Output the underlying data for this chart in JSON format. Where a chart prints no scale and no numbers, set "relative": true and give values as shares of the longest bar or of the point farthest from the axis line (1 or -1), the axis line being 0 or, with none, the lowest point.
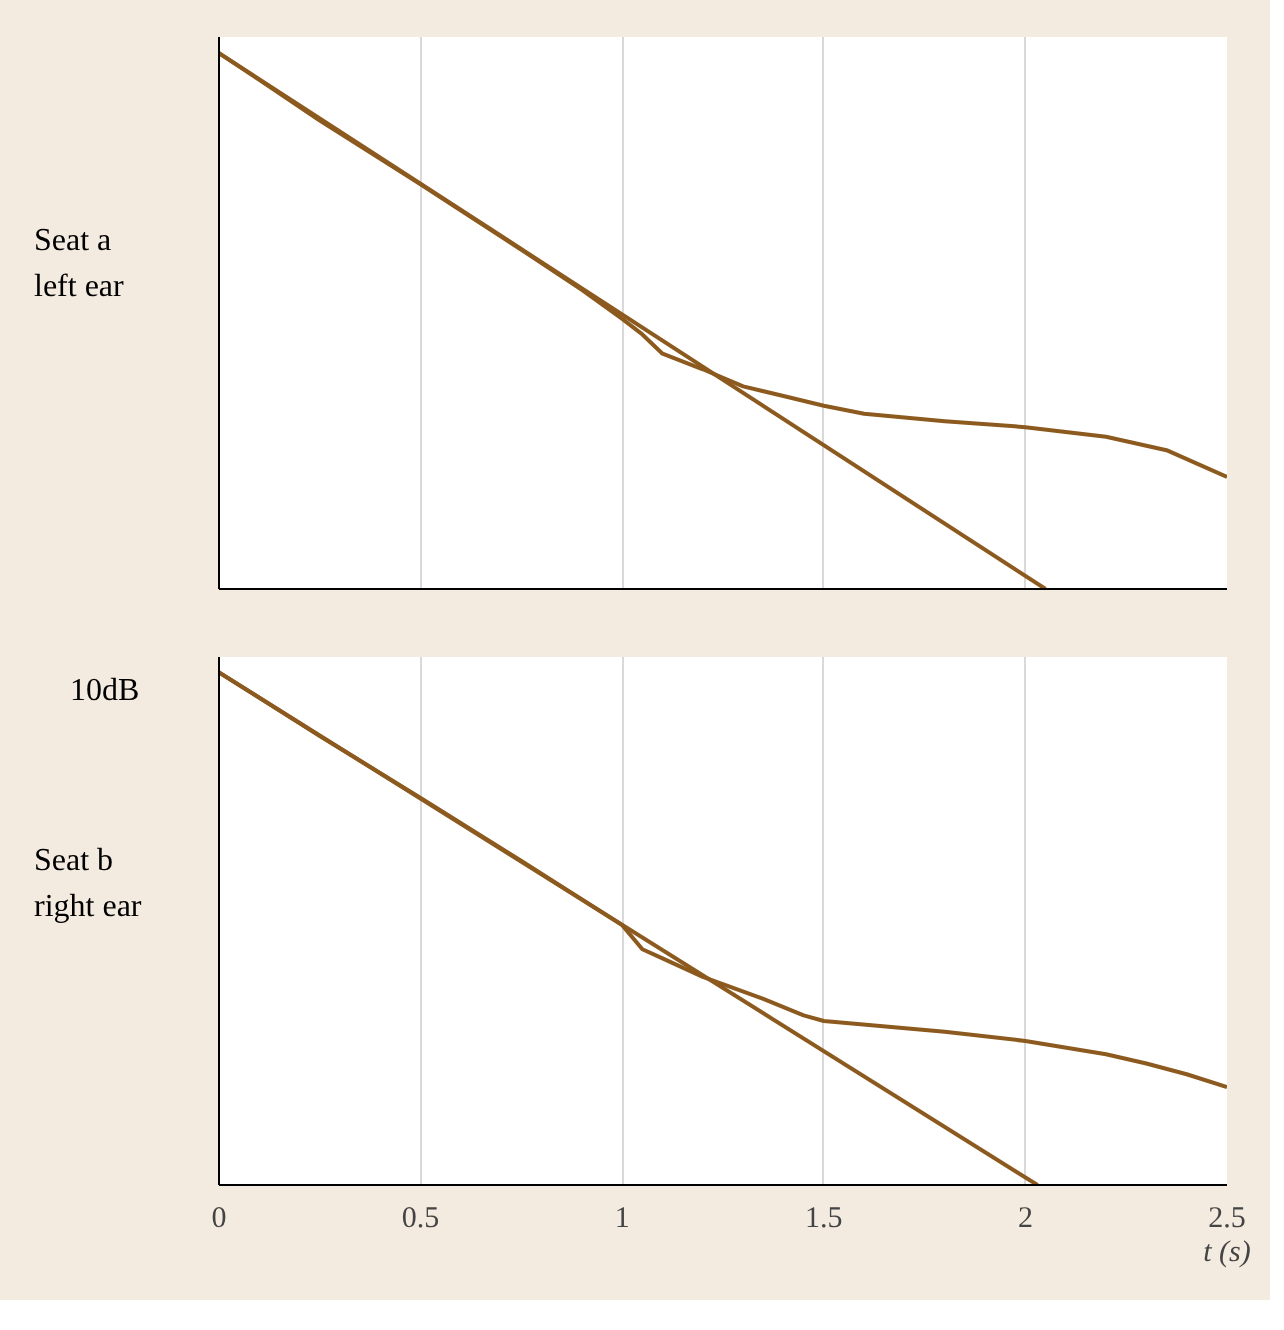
{
  "chart_data": [
    {
      "type": "line",
      "relative": true,
      "ylabel": "Seat a\nleft ear",
      "xlim": [
        0,
        2.5
      ],
      "xticks": [
        0,
        0.5,
        1,
        1.5,
        2,
        2.5
      ],
      "grid": "x",
      "tick_labels": false,
      "series": [
        {
          "color": "#8c5a1e",
          "x": [
            0,
            0.1,
            0.25,
            0.5,
            0.75,
            0.9,
            1.0,
            1.05,
            1.1,
            1.2,
            1.3,
            1.4,
            1.5,
            1.6,
            1.8,
            2.0,
            2.2,
            2.35,
            2.5
          ],
          "values": [
            1.0,
            0.95,
            0.874,
            0.755,
            0.633,
            0.558,
            0.504,
            0.475,
            0.439,
            0.41,
            0.378,
            0.36,
            0.342,
            0.327,
            0.313,
            0.302,
            0.284,
            0.259,
            0.209
          ]
        },
        {
          "color": "#8c5a1e",
          "x": [
            0,
            2.05
          ],
          "values": [
            1.0,
            0.0
          ]
        }
      ]
    },
    {
      "type": "line",
      "relative": true,
      "ylabel": "Seat b\nright ear",
      "xlabel": "t (s)",
      "annotations": [
        "10dB"
      ],
      "xlim": [
        0,
        2.5
      ],
      "xticks": [
        0,
        0.5,
        1,
        1.5,
        2,
        2.5
      ],
      "grid": "x",
      "tick_labels": "x",
      "series": [
        {
          "color": "#8c5a1e",
          "x": [
            0,
            0.25,
            0.5,
            0.75,
            1.0,
            1.05,
            1.1,
            1.2,
            1.35,
            1.45,
            1.5,
            1.8,
            2.0,
            2.2,
            2.3,
            2.4,
            2.5
          ],
          "values": [
            1.0,
            0.876,
            0.755,
            0.632,
            0.507,
            0.46,
            0.442,
            0.406,
            0.363,
            0.331,
            0.32,
            0.299,
            0.281,
            0.255,
            0.237,
            0.216,
            0.191
          ]
        },
        {
          "color": "#8c5a1e",
          "x": [
            0,
            2.03
          ],
          "values": [
            1.0,
            0.0
          ]
        }
      ]
    }
  ]
}
